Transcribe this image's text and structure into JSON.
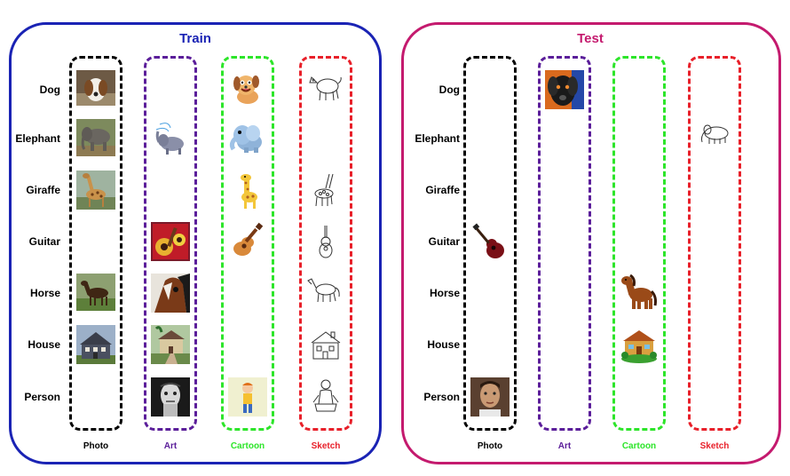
{
  "colors": {
    "train": "#1a23b4",
    "test": "#c41a6e",
    "photo": "#000000",
    "art": "#5b1e9a",
    "cartoon": "#2de52a",
    "sketch": "#e8202a"
  },
  "train": {
    "title": "Train",
    "rows": [
      "Dog",
      "Elephant",
      "Giraffe",
      "Guitar",
      "Horse",
      "House",
      "Person"
    ],
    "columns": [
      "Photo",
      "Art",
      "Cartoon",
      "Sketch"
    ],
    "images": [
      {
        "row": "Dog",
        "column": "Photo",
        "icon": "dog-photo"
      },
      {
        "row": "Dog",
        "column": "Cartoon",
        "icon": "dog-cartoon"
      },
      {
        "row": "Dog",
        "column": "Sketch",
        "icon": "dog-sketch"
      },
      {
        "row": "Elephant",
        "column": "Photo",
        "icon": "elephant-photo"
      },
      {
        "row": "Elephant",
        "column": "Art",
        "icon": "elephant-art"
      },
      {
        "row": "Elephant",
        "column": "Cartoon",
        "icon": "elephant-cartoon"
      },
      {
        "row": "Giraffe",
        "column": "Photo",
        "icon": "giraffe-photo"
      },
      {
        "row": "Giraffe",
        "column": "Cartoon",
        "icon": "giraffe-cartoon"
      },
      {
        "row": "Giraffe",
        "column": "Sketch",
        "icon": "giraffe-sketch"
      },
      {
        "row": "Guitar",
        "column": "Art",
        "icon": "guitar-art"
      },
      {
        "row": "Guitar",
        "column": "Cartoon",
        "icon": "guitar-cartoon"
      },
      {
        "row": "Guitar",
        "column": "Sketch",
        "icon": "guitar-sketch"
      },
      {
        "row": "Horse",
        "column": "Photo",
        "icon": "horse-photo"
      },
      {
        "row": "Horse",
        "column": "Art",
        "icon": "horse-art"
      },
      {
        "row": "Horse",
        "column": "Sketch",
        "icon": "horse-sketch"
      },
      {
        "row": "House",
        "column": "Photo",
        "icon": "house-photo"
      },
      {
        "row": "House",
        "column": "Art",
        "icon": "house-art"
      },
      {
        "row": "House",
        "column": "Sketch",
        "icon": "house-sketch"
      },
      {
        "row": "Person",
        "column": "Art",
        "icon": "person-art"
      },
      {
        "row": "Person",
        "column": "Cartoon",
        "icon": "person-cartoon"
      },
      {
        "row": "Person",
        "column": "Sketch",
        "icon": "person-sketch"
      }
    ]
  },
  "test": {
    "title": "Test",
    "rows": [
      "Dog",
      "Elephant",
      "Giraffe",
      "Guitar",
      "Horse",
      "House",
      "Person"
    ],
    "columns": [
      "Photo",
      "Art",
      "Cartoon",
      "Sketch"
    ],
    "images": [
      {
        "row": "Dog",
        "column": "Art",
        "icon": "dog-art"
      },
      {
        "row": "Elephant",
        "column": "Sketch",
        "icon": "elephant-sketch"
      },
      {
        "row": "Giraffe",
        "column": "Art",
        "icon": "giraffe-art"
      },
      {
        "row": "Guitar",
        "column": "Photo",
        "icon": "guitar-photo"
      },
      {
        "row": "Horse",
        "column": "Cartoon",
        "icon": "horse-cartoon"
      },
      {
        "row": "House",
        "column": "Cartoon",
        "icon": "house-cartoon"
      },
      {
        "row": "Person",
        "column": "Photo",
        "icon": "person-photo"
      }
    ]
  }
}
